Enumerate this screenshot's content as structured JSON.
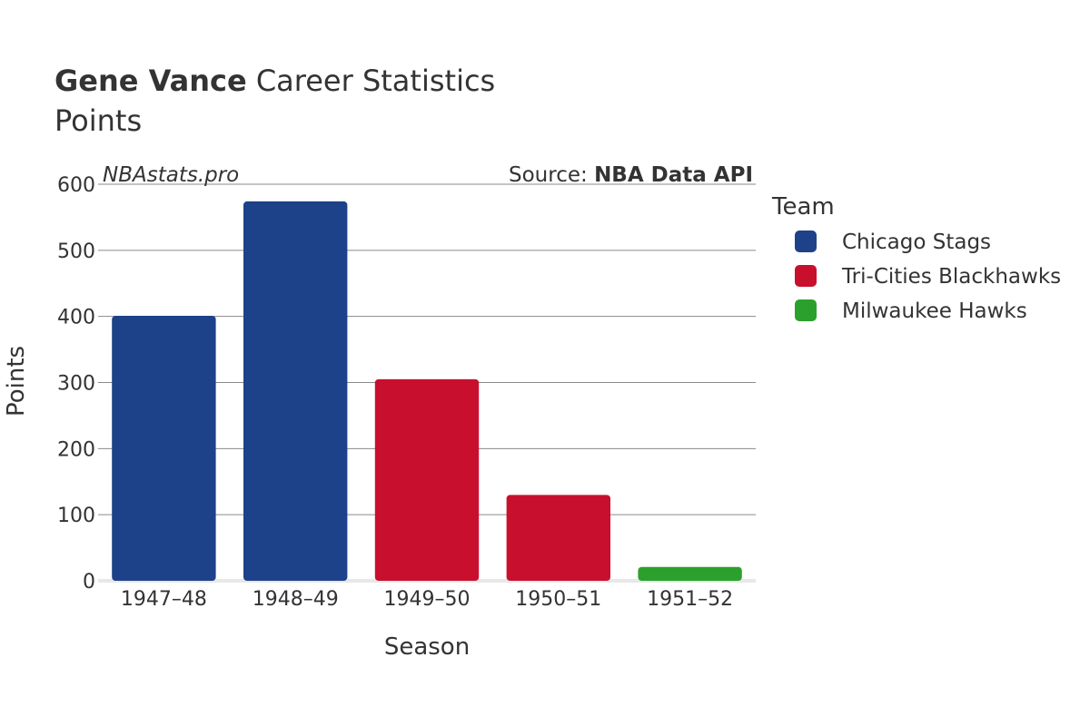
{
  "header": {
    "player_name": "Gene Vance",
    "title_rest": " Career Statistics",
    "subtitle": "Points"
  },
  "watermark": "NBAstats.pro",
  "source": {
    "prefix": "Source: ",
    "name": "NBA Data API"
  },
  "legend": {
    "title": "Team",
    "items": [
      {
        "label": "Chicago Stags",
        "color": "#1d4289"
      },
      {
        "label": "Tri-Cities Blackhawks",
        "color": "#c8102e"
      },
      {
        "label": "Milwaukee Hawks",
        "color": "#2ca02c"
      }
    ]
  },
  "chart_data": {
    "type": "bar",
    "xlabel": "Season",
    "ylabel": "Points",
    "ylim": [
      0,
      600
    ],
    "yticks": [
      0,
      100,
      200,
      300,
      400,
      500,
      600
    ],
    "categories": [
      "1947–48",
      "1948–49",
      "1949–50",
      "1950–51",
      "1951–52"
    ],
    "values": [
      401,
      574,
      305,
      130,
      21
    ],
    "teams": [
      "Chicago Stags",
      "Chicago Stags",
      "Tri-Cities Blackhawks",
      "Tri-Cities Blackhawks",
      "Milwaukee Hawks"
    ],
    "grid": true,
    "legend_position": "right"
  }
}
